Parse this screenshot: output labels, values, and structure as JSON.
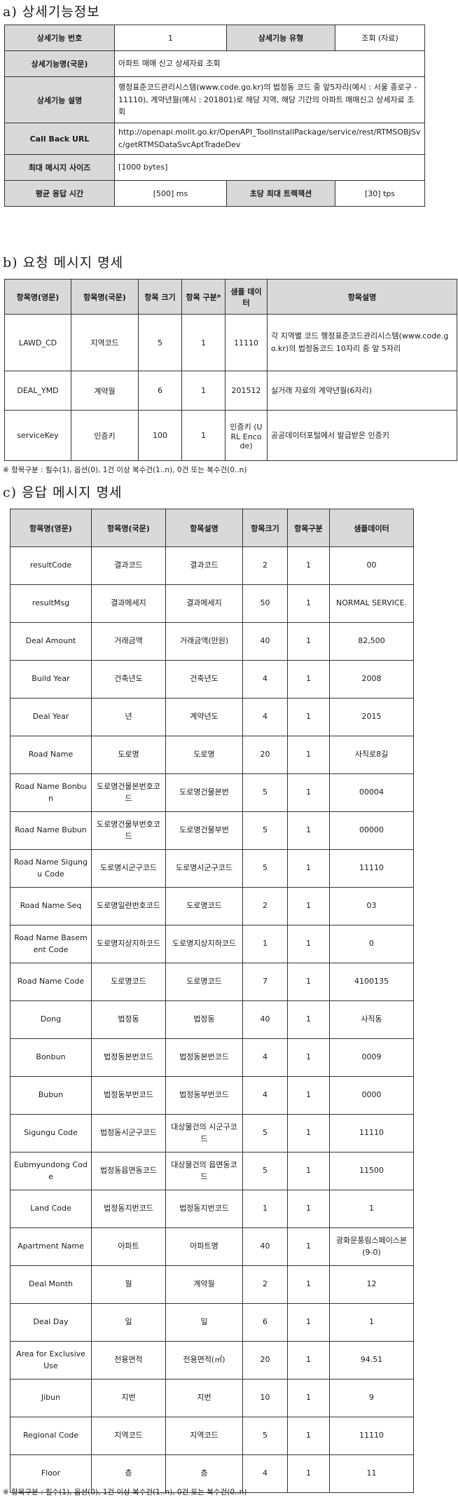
{
  "section_a": {
    "title": "a) 상세기능정보",
    "rows": {
      "func_no_label": "상세기능 번호",
      "func_no_value": "1",
      "func_type_label": "상세기능 유형",
      "func_type_value": "조회 (자료)",
      "name_label": "상세기능명(국문)",
      "name_value": "아파트 매매 신고 상세자료 조회",
      "desc_label": "상세기능 설명",
      "desc_value": "행정표준코드관리시스템(www.code.go.kr)의 법정동 코드 중 앞5자리(예시 : 서울 종로구 - 11110), 계약년월(예시 : 201801)로 해당 지역, 해당 기간의 아파트 매매신고 상세자료 조회",
      "url_label": "Call Back URL",
      "url_value": "http://openapi.molit.go.kr/OpenAPI_ToolInstallPackage/service/rest/RTMSOBJSvc/getRTMSDataSvcAptTradeDev",
      "max_size_label": "최대 메시지 사이즈",
      "max_size_value": "[1000 bytes]",
      "resp_time_label": "평균 응답 시간",
      "resp_time_value": "[500] ms",
      "tps_label": "초당 최대 트랙잭션",
      "tps_value": "[30] tps"
    }
  },
  "section_b": {
    "title": "b) 요청 메시지 명세",
    "headers": [
      "항목명(영문)",
      "항목명(국문)",
      "항목 크기",
      "항목 구분*",
      "샘플 데이터",
      "항목설명"
    ],
    "rows": [
      [
        "LAWD_CD",
        "지역코드",
        "5",
        "1",
        "11110",
        "각 지역별 코드 행정표준코드관리시스템(www.code.go.kr)의 법정동코드 10자리 중 앞 5자리"
      ],
      [
        "DEAL_YMD",
        "계약월",
        "6",
        "1",
        "201512",
        "실거래 자료의 계약년월(6자리)"
      ],
      [
        "serviceKey",
        "인증키",
        "100",
        "1",
        "인증키 (URL Encode)",
        "공공데이터포털에서 발급받은 인증키"
      ]
    ],
    "note": "※ 항목구분 : 필수(1), 옵션(0), 1건 이상 복수건(1..n), 0건 또는 복수건(0..n)"
  },
  "section_c": {
    "title": "c) 응답 메시지 명세",
    "headers": [
      "항목명(영문)",
      "항목명(국문)",
      "항목설명",
      "항목크기",
      "항목구분",
      "샘플데이터"
    ],
    "rows": [
      [
        "resultCode",
        "결과코드",
        "결과코드",
        "2",
        "1",
        "00"
      ],
      [
        "resultMsg",
        "결과메세지",
        "결과메세지",
        "50",
        "1",
        "NORMAL SERVICE."
      ],
      [
        "Deal Amount",
        "거래금액",
        "거래금액(만원)",
        "40",
        "1",
        "82,500"
      ],
      [
        "Build Year",
        "건축년도",
        "건축년도",
        "4",
        "1",
        "2008"
      ],
      [
        "Deal Year",
        "년",
        "계약년도",
        "4",
        "1",
        "2015"
      ],
      [
        "Road Name",
        "도로명",
        "도로명",
        "20",
        "1",
        "사직로8길"
      ],
      [
        "Road Name Bonbun",
        "도로명건물본번호코드",
        "도로명건물본번",
        "5",
        "1",
        "00004"
      ],
      [
        "Road Name Bubun",
        "도로명건물부번호코드",
        "도로명건물부번",
        "5",
        "1",
        "00000"
      ],
      [
        "Road Name Sigungu Code",
        "도로명시군구코드",
        "도로명시군구코드",
        "5",
        "1",
        "11110"
      ],
      [
        "Road Name Seq",
        "도로명일련번호코드",
        "도로명코드",
        "2",
        "1",
        "03"
      ],
      [
        "Road Name Basement Code",
        "도로명지상지하코드",
        "도로명지상지하코드",
        "1",
        "1",
        "0"
      ],
      [
        "Road Name Code",
        "도로명코드",
        "도로명코드",
        "7",
        "1",
        "4100135"
      ],
      [
        "Dong",
        "법정동",
        "법정동",
        "40",
        "1",
        "사직동"
      ],
      [
        "Bonbun",
        "법정동본번코드",
        "법정동본번코드",
        "4",
        "1",
        "0009"
      ],
      [
        "Bubun",
        "법정동부번코드",
        "법정동부번코드",
        "4",
        "1",
        "0000"
      ],
      [
        "Sigungu Code",
        "법정동시군구코드",
        "대상물건의 시군구코드",
        "5",
        "1",
        "11110"
      ],
      [
        "Eubmyundong Code",
        "법정동읍면동코드",
        "대상물건의 읍면동코드",
        "5",
        "1",
        "11500"
      ],
      [
        "Land Code",
        "법정동지번코드",
        "법정동지번코드",
        "1",
        "1",
        "1"
      ],
      [
        "Apartment Name",
        "아파트",
        "아파트명",
        "40",
        "1",
        "광화문풍림스페이스본(9-0)"
      ],
      [
        "Deal Month",
        "월",
        "계약월",
        "2",
        "1",
        "12"
      ],
      [
        "Deal Day",
        "일",
        "일",
        "6",
        "1",
        "1"
      ],
      [
        "Area for Exclusive Use",
        "전용면적",
        "전용면적(㎡)",
        "20",
        "1",
        "94.51"
      ],
      [
        "Jibun",
        "지번",
        "지번",
        "10",
        "1",
        "9"
      ],
      [
        "Regional Code",
        "지역코드",
        "지역코드",
        "5",
        "1",
        "11110"
      ],
      [
        "Floor",
        "층",
        "층",
        "4",
        "1",
        "11"
      ]
    ],
    "note": "※ 항목구분 : 필수(1), 옵션(0), 1건 이상 복수건(1..n), 0건 또는 복수건(0..n)"
  }
}
